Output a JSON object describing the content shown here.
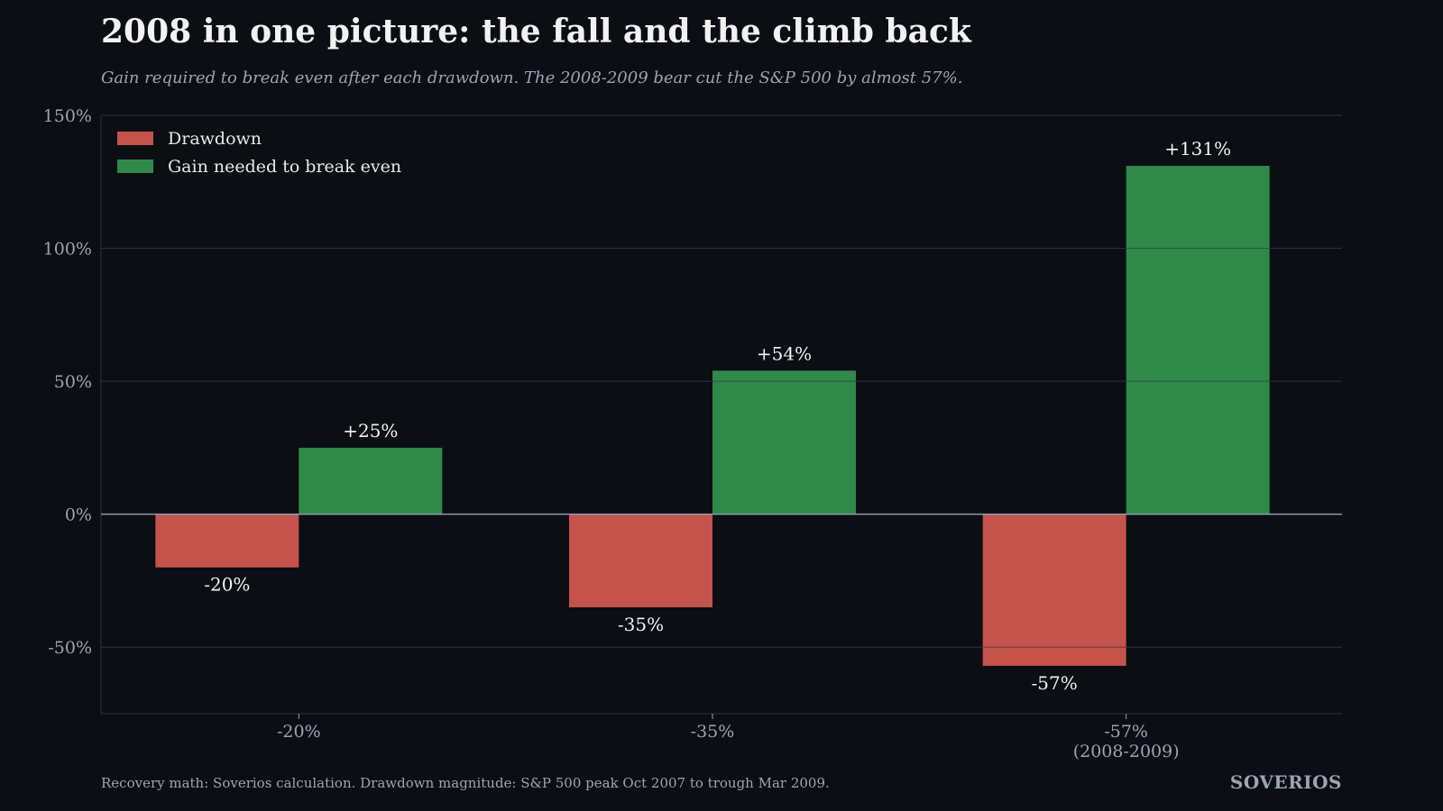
{
  "header": {
    "title": "2008 in one picture: the fall and the climb back",
    "subtitle": "Gain required to break even after each drawdown. The 2008-2009 bear cut the S&P 500 by almost 57%."
  },
  "footer": {
    "source": "Recovery math: Soverios calculation. Drawdown magnitude: S&P 500 peak Oct 2007 to trough Mar 2009.",
    "brand": "SOVERIOS"
  },
  "chart_data": {
    "type": "bar",
    "categories": [
      [
        "-20%"
      ],
      [
        "-35%"
      ],
      [
        "-57%",
        "(2008-2009)"
      ]
    ],
    "series": [
      {
        "name": "Drawdown",
        "values": [
          -20,
          -35,
          -57
        ],
        "labels": [
          "-20%",
          "-35%",
          "-57%"
        ],
        "color": "#c4534c"
      },
      {
        "name": "Gain needed to break even",
        "values": [
          25,
          54,
          131
        ],
        "labels": [
          "+25%",
          "+54%",
          "+131%"
        ],
        "color": "#2f8a4a"
      }
    ],
    "ylim": [
      -75,
      150
    ],
    "yticks": [
      -50,
      0,
      50,
      100,
      150
    ],
    "ytick_labels": [
      "-50%",
      "0%",
      "50%",
      "100%",
      "150%"
    ],
    "grid": true,
    "legend_position": "top-left",
    "colors": {
      "background": "#0b0e13",
      "gridline": "#283140",
      "zero_line": "#8f9bab",
      "tick_text": "#9aa5b5",
      "data_label": "#f2f2f2"
    }
  }
}
